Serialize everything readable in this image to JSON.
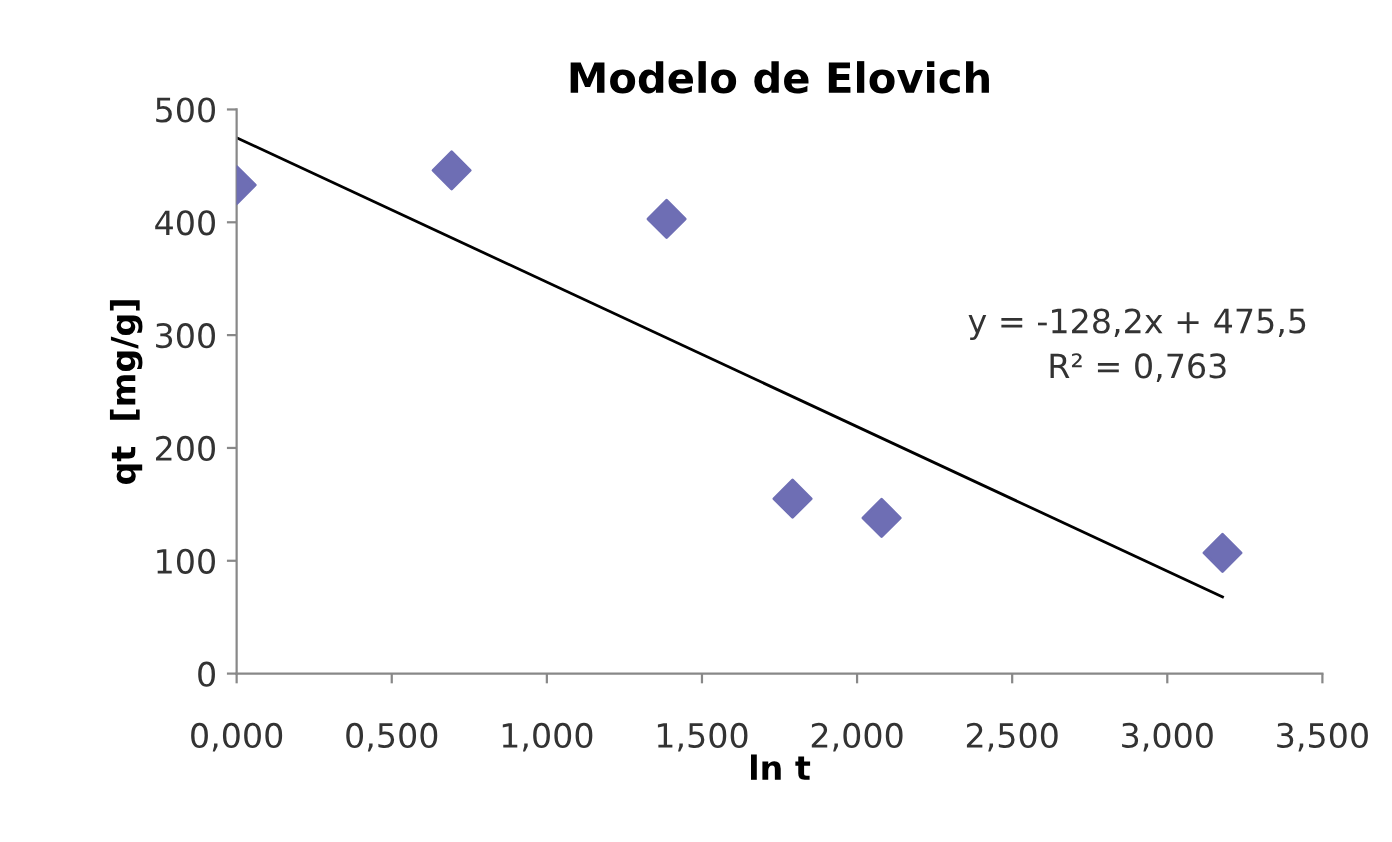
{
  "chart_data": {
    "type": "scatter",
    "title": "Modelo de Elovich",
    "xlabel": "ln t",
    "ylabel": "qt  [mg/g]",
    "series": [
      {
        "color": "#6e6eb4",
        "marker": "diamond",
        "x": [
          0.0,
          0.693,
          1.386,
          1.792,
          2.079,
          3.178
        ],
        "values": [
          433,
          446,
          403,
          155,
          138,
          107
        ]
      },
      {
        "type": "line",
        "color": "#000000",
        "marker": "none",
        "x": [
          0.0,
          3.178
        ],
        "values": [
          475,
          68
        ]
      }
    ],
    "annotations": [
      "y = -128,2x + 475,5\nR² = 0,763"
    ],
    "xlim": [
      0,
      3.5
    ],
    "ylim": [
      0,
      500
    ],
    "xticks": [
      {
        "value": 0,
        "label": "0,000"
      },
      {
        "value": 0.5,
        "label": "0,500"
      },
      {
        "value": 1,
        "label": "1,000"
      },
      {
        "value": 1.5,
        "label": "1,500"
      },
      {
        "value": 2,
        "label": "2,000"
      },
      {
        "value": 2.5,
        "label": "2,500"
      },
      {
        "value": 3,
        "label": "3,000"
      },
      {
        "value": 3.5,
        "label": "3,500"
      }
    ],
    "yticks": [
      0,
      100,
      200,
      300,
      400,
      500
    ],
    "grid": false,
    "legend": false
  }
}
